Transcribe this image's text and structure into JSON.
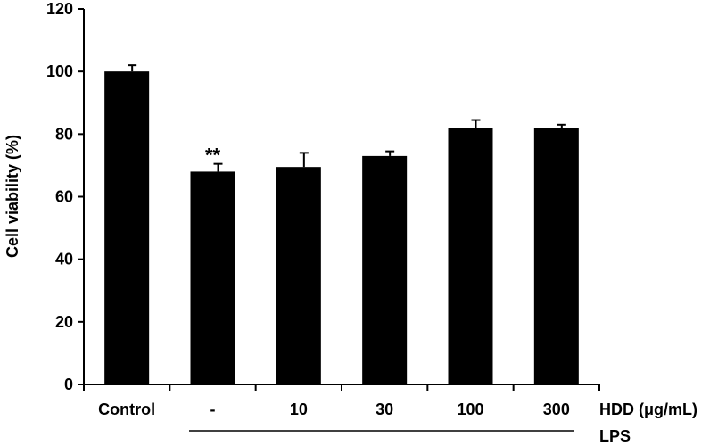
{
  "chart_data": {
    "type": "bar",
    "categories": [
      "Control",
      "-",
      "10",
      "30",
      "100",
      "300"
    ],
    "values": [
      100,
      68,
      69.5,
      73,
      82,
      82
    ],
    "errors": [
      2,
      2.5,
      4.5,
      1.5,
      2.5,
      1
    ],
    "ylabel": "Cell viability (%)",
    "xlabel": "HDD (μg/mL)",
    "group_label": "LPS",
    "ylim": [
      0,
      120
    ],
    "yticks": [
      0,
      20,
      40,
      60,
      80,
      100,
      120
    ],
    "annotations": [
      {
        "category": "-",
        "text": "**"
      }
    ],
    "bar_color": "#000000",
    "grid": false,
    "legend": "none"
  }
}
